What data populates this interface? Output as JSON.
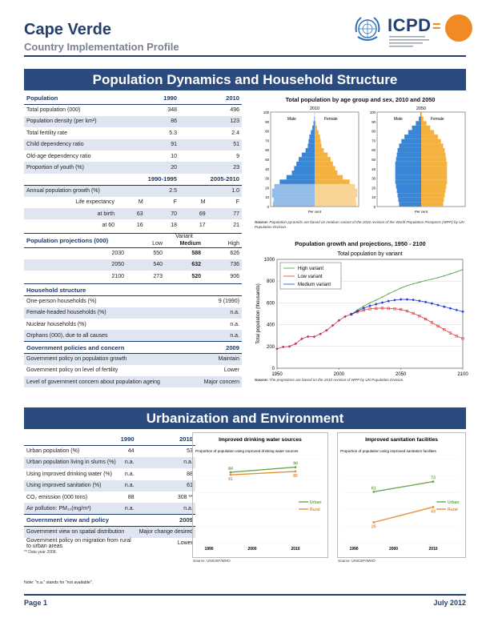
{
  "header": {
    "country": "Cape Verde",
    "subtitle": "Country Implementation Profile",
    "logo_text": "ICPD",
    "logo_eq": "="
  },
  "section1_title": "Population Dynamics and Household Structure",
  "section2_title": "Urbanization and Environment",
  "population": {
    "heading": "Population",
    "years": [
      "1990",
      "2010"
    ],
    "rows": [
      {
        "label": "Total population (000)",
        "v1": "348",
        "v2": "496"
      },
      {
        "label": "Population density (per km²)",
        "v1": "86",
        "v2": "123"
      },
      {
        "label": "Total fertility rate",
        "v1": "5.3",
        "v2": "2.4"
      },
      {
        "label": "Child dependency ratio",
        "v1": "91",
        "v2": "51"
      },
      {
        "label": "Old-age dependency ratio",
        "v1": "10",
        "v2": "9"
      },
      {
        "label": "Proportion of youth (%)",
        "v1": "20",
        "v2": "23"
      }
    ],
    "periods": [
      "1990-1995",
      "2005-2010"
    ],
    "growth": {
      "label": "Annual population growth (%)",
      "v1": "2.5",
      "v2": "1.0"
    },
    "life_label": "Life expectancy",
    "sex": [
      "M",
      "F",
      "M",
      "F"
    ],
    "life_rows": [
      {
        "label": "at birth",
        "vals": [
          "63",
          "70",
          "69",
          "77"
        ]
      },
      {
        "label": "at 60",
        "vals": [
          "16",
          "18",
          "17",
          "21"
        ]
      }
    ]
  },
  "projections": {
    "heading": "Population projections (000)",
    "variant_label": "Variant",
    "variants": [
      "Low",
      "Medium",
      "High"
    ],
    "rows": [
      {
        "year": "2030",
        "vals": [
          "550",
          "588",
          "626"
        ]
      },
      {
        "year": "2050",
        "vals": [
          "540",
          "632",
          "736"
        ]
      },
      {
        "year": "2100",
        "vals": [
          "273",
          "520",
          "906"
        ]
      }
    ]
  },
  "household": {
    "heading": "Household structure",
    "rows": [
      {
        "label": "One-person households (%)",
        "value": "9 (1990)"
      },
      {
        "label": "Female-headed households (%)",
        "value": "n.a."
      },
      {
        "label": "Nuclear households (%)",
        "value": "n.a."
      },
      {
        "label": "Orphans (000), due to all causes",
        "value": "n.a."
      }
    ]
  },
  "policies": {
    "heading": "Government policies and concern",
    "year": "2009",
    "rows": [
      {
        "label": "Government policy on population growth",
        "value": "Maintain"
      },
      {
        "label": "Government policy on level of fertility",
        "value": "Lower"
      },
      {
        "label": "Level of government concern about population ageing",
        "value": "Major concern"
      }
    ]
  },
  "pyramid": {
    "title": "Total population by age group and sex, 2010 and 2050",
    "years": [
      "2010",
      "2050"
    ],
    "male_label": "Male",
    "female_label": "Female",
    "y_ticks": [
      "100",
      "90",
      "80",
      "70",
      "60",
      "50",
      "40",
      "30",
      "20",
      "10",
      "0"
    ],
    "x_caption": "Per cent",
    "male_color": "#3a86d6",
    "female_color": "#f5b13d",
    "source_label": "Source:",
    "source_text": "Population pyramids are based on medium variant of the 2010 revision of the World Population Prospects (WPP) by UN Population Division."
  },
  "growth_chart": {
    "title": "Population growth and projections, 1950 - 2100",
    "subtitle": "Total population by variant",
    "ylabel": "Total population (thousands)",
    "source_label": "Source:",
    "source_text": "The projections are based on the 2010 revision of WPP by UN Population Division."
  },
  "chart_data": [
    {
      "type": "line",
      "title": "Total population by variant",
      "ylabel": "Total population (thousands)",
      "xlim": [
        1950,
        2100
      ],
      "ylim": [
        0,
        1000
      ],
      "x_ticks": [
        "1950",
        "2000",
        "2050",
        "2100"
      ],
      "y_ticks": [
        "0",
        "200",
        "400",
        "600",
        "800",
        "1000"
      ],
      "legend": "top-left",
      "historical": {
        "x": [
          1950,
          1955,
          1960,
          1965,
          1970,
          1975,
          1980,
          1985,
          1990,
          1995,
          2000,
          2005,
          2010
        ],
        "values": [
          178,
          196,
          200,
          225,
          270,
          290,
          289,
          315,
          348,
          393,
          439,
          475,
          496
        ],
        "color": "#c0306a"
      },
      "series": [
        {
          "name": "High variant",
          "color": "#3f9a3a",
          "x": [
            2010,
            2015,
            2020,
            2025,
            2030,
            2035,
            2040,
            2045,
            2050,
            2055,
            2060,
            2065,
            2070,
            2075,
            2080,
            2085,
            2090,
            2095,
            2100
          ],
          "values": [
            496,
            535,
            570,
            600,
            626,
            654,
            683,
            710,
            736,
            758,
            775,
            790,
            805,
            818,
            832,
            848,
            866,
            885,
            906
          ]
        },
        {
          "name": "Low variant",
          "color": "#e03a3a",
          "x": [
            2010,
            2015,
            2020,
            2025,
            2030,
            2035,
            2040,
            2045,
            2050,
            2055,
            2060,
            2065,
            2070,
            2075,
            2080,
            2085,
            2090,
            2095,
            2100
          ],
          "values": [
            496,
            517,
            533,
            545,
            550,
            552,
            550,
            546,
            540,
            525,
            505,
            480,
            452,
            420,
            388,
            355,
            323,
            295,
            273
          ]
        },
        {
          "name": "Medium variant",
          "color": "#1d3fd6",
          "x": [
            2010,
            2015,
            2020,
            2025,
            2030,
            2035,
            2040,
            2045,
            2050,
            2055,
            2060,
            2065,
            2070,
            2075,
            2080,
            2085,
            2090,
            2095,
            2100
          ],
          "values": [
            496,
            526,
            552,
            573,
            588,
            603,
            617,
            626,
            632,
            632,
            628,
            619,
            608,
            595,
            580,
            565,
            550,
            535,
            520
          ]
        }
      ]
    },
    {
      "type": "line",
      "title": "Improved drinking water sources",
      "subtitle": "Proportion of population using improved drinking water sources",
      "x_ticks": [
        "1990",
        "2000",
        "2010"
      ],
      "legend": "right",
      "series": [
        {
          "name": "Urban",
          "color": "#6aa84f",
          "x": [
            1990,
            1995,
            2010
          ],
          "values": [
            null,
            84,
            90
          ]
        },
        {
          "name": "Rural",
          "color": "#e69138",
          "x": [
            1990,
            1995,
            2010
          ],
          "values": [
            null,
            81,
            85
          ]
        }
      ],
      "source": "Source: UNICEF/WHO"
    },
    {
      "type": "line",
      "title": "Improved sanitation facilities",
      "subtitle": "Proportion of population using improved sanitation facilities",
      "x_ticks": [
        "1990",
        "2000",
        "2010"
      ],
      "legend": "right",
      "series": [
        {
          "name": "Urban",
          "color": "#6aa84f",
          "x": [
            1990,
            1995,
            2010
          ],
          "values": [
            null,
            61,
            73
          ]
        },
        {
          "name": "Rural",
          "color": "#e69138",
          "x": [
            1990,
            1995,
            2010
          ],
          "values": [
            null,
            25,
            43
          ]
        }
      ],
      "source": "Source: UNICEF/WHO"
    }
  ],
  "urban": {
    "years": [
      "1990",
      "2010"
    ],
    "rows": [
      {
        "label": "Urban population (%)",
        "v1": "44",
        "v2": "53"
      },
      {
        "label": "Urban population living in slums (%)",
        "v1": "n.a.",
        "v2": "n.a."
      },
      {
        "label": "Using improved drinking water (%)",
        "v1": "n.a.",
        "v2": "88"
      },
      {
        "label": "Using improved sanitation (%)",
        "v1": "n.a.",
        "v2": "61"
      },
      {
        "label": "CO₂ emission (000 tons)",
        "v1": "88",
        "v2": "308 **"
      },
      {
        "label": "Air pollution: PM₁₀(mg/m³)",
        "v1": "n.a.",
        "v2": "n.a."
      }
    ],
    "view_heading": "Government view and policy",
    "view_year": "2009",
    "view_rows": [
      {
        "label": "Government view on spatial distribution",
        "value": "Major change desired"
      },
      {
        "label": "Government policy on migration from rural to urban areas",
        "value": "Lower"
      }
    ],
    "footnote": "** Data year 2008."
  },
  "note": "Note: \"n.a.\" stands for \"not available\".",
  "footer": {
    "page": "Page 1",
    "date": "July 2012"
  }
}
